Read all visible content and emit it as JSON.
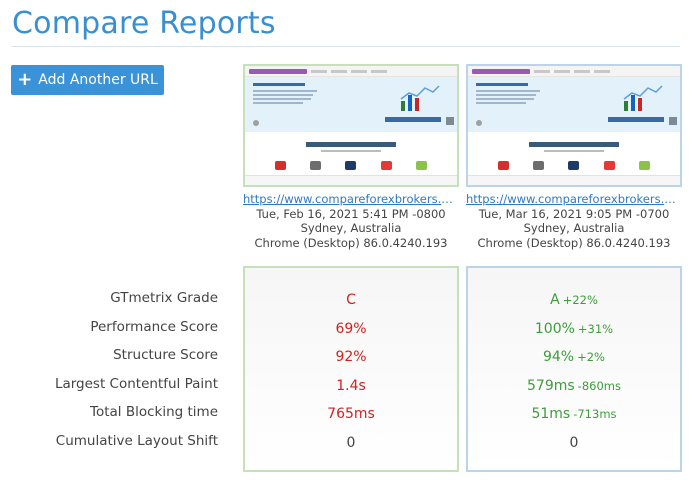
{
  "header": {
    "title": "Compare Reports"
  },
  "actions": {
    "add_url_label": "Add Another URL"
  },
  "reports": [
    {
      "url": "https://www.compareforexbrokers.com/be...",
      "date": "Tue, Feb 16, 2021 5:41 PM -0800",
      "location": "Sydney, Australia",
      "browser": "Chrome (Desktop) 86.0.4240.193"
    },
    {
      "url": "https://www.compareforexbrokers.com/be...",
      "date": "Tue, Mar 16, 2021 9:05 PM -0700",
      "location": "Sydney, Australia",
      "browser": "Chrome (Desktop) 86.0.4240.193"
    }
  ],
  "metrics": [
    {
      "label": "GTmetrix Grade",
      "a": "C",
      "b": "A",
      "b_delta": "+22%"
    },
    {
      "label": "Performance Score",
      "a": "69%",
      "b": "100%",
      "b_delta": "+31%"
    },
    {
      "label": "Structure Score",
      "a": "92%",
      "b": "94%",
      "b_delta": "+2%"
    },
    {
      "label": "Largest Contentful Paint",
      "a": "1.4s",
      "b": "579ms",
      "b_delta": "-860ms"
    },
    {
      "label": "Total Blocking time",
      "a": "765ms",
      "b": "51ms",
      "b_delta": "-713ms"
    },
    {
      "label": "Cumulative Layout Shift",
      "a": "0",
      "b": "0",
      "b_delta": ""
    }
  ],
  "colors": {
    "accent": "#3a8fd0",
    "worse": "#d0231f",
    "better": "#3c9d3a",
    "col_a_border": "#c6e0b9",
    "col_b_border": "#bcd4ea"
  }
}
